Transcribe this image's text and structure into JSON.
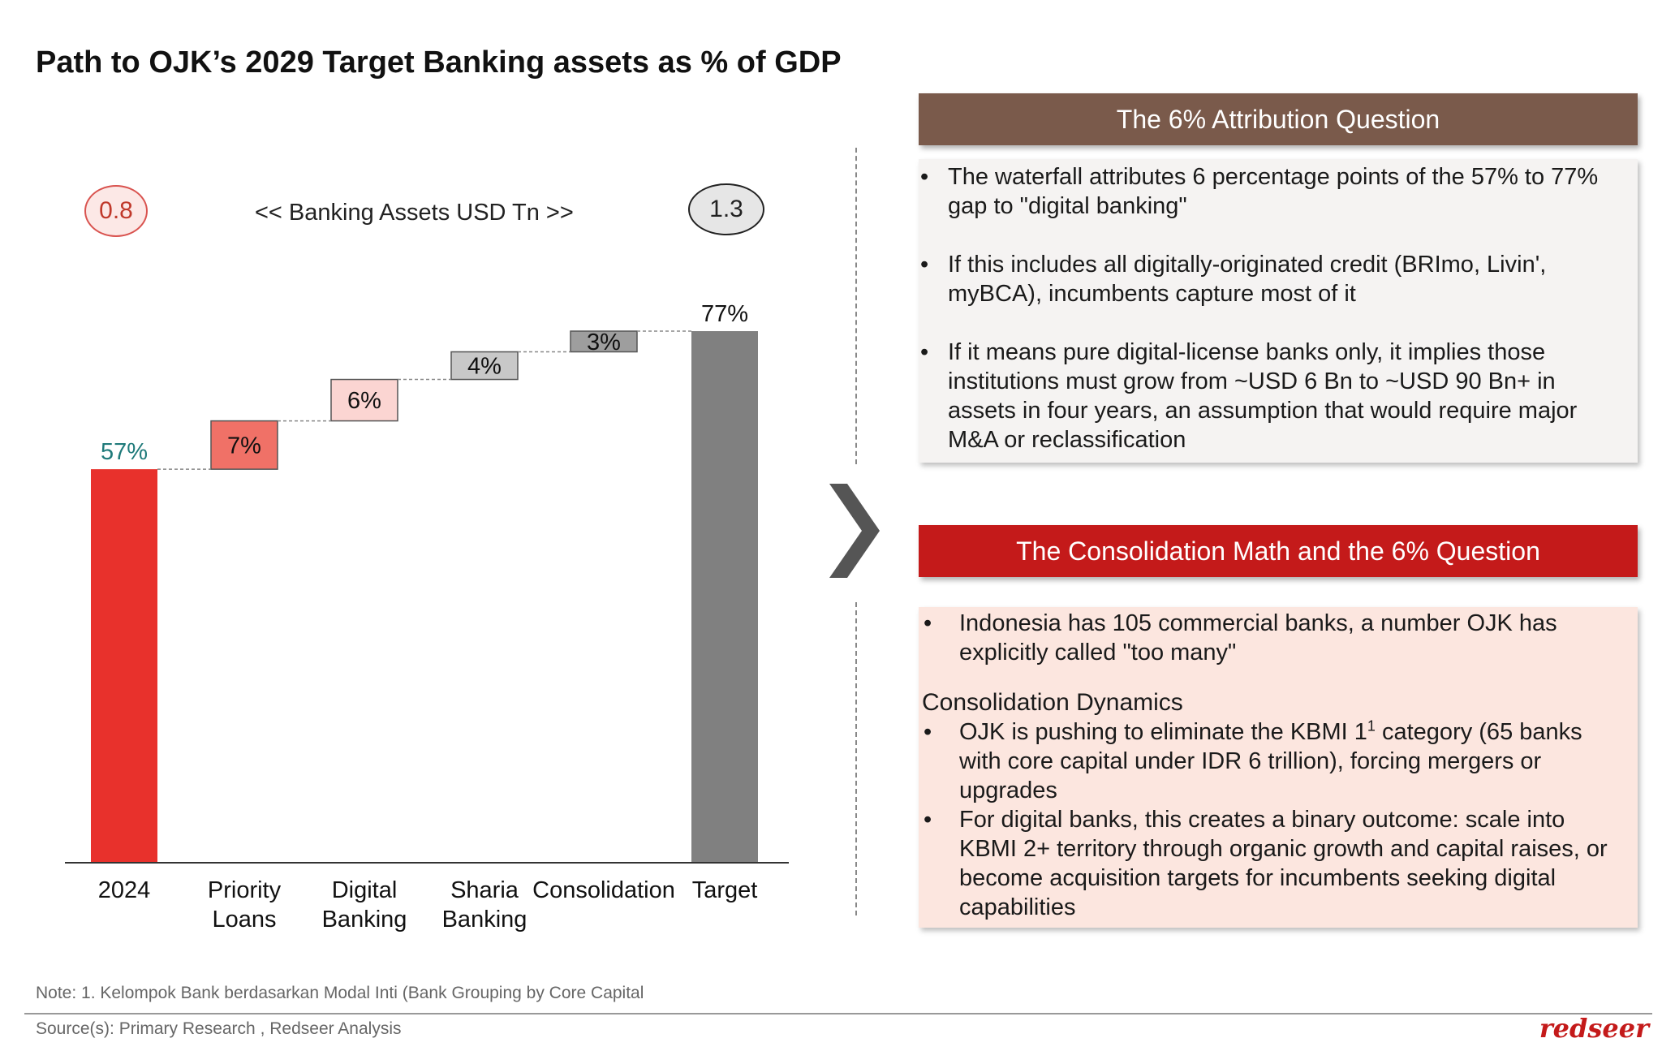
{
  "title": "Path to OJK’s 2029 Target Banking assets as % of GDP",
  "chart_data": {
    "type": "bar",
    "subtype": "waterfall",
    "categories": [
      "2024",
      "Priority\nLoans",
      "Digital\nBanking",
      "Sharia\nBanking",
      "Consolidation",
      "Target"
    ],
    "values": [
      57,
      7,
      6,
      4,
      3,
      77
    ],
    "value_labels": [
      "57%",
      "7%",
      "6%",
      "4%",
      "3%",
      "77%"
    ],
    "bar_roles": [
      "total",
      "increment",
      "increment",
      "increment",
      "increment",
      "total"
    ],
    "start_total": "0.8",
    "end_total": "1.3",
    "units_label": "<< Banking Assets USD Tn >>",
    "ylim": [
      0,
      77
    ],
    "grid": false,
    "colors": {
      "start": "#e8312c",
      "increments": [
        "#f07167",
        "#fbd5d2",
        "#c8c8c8",
        "#9e9e9e"
      ],
      "end": "#808080",
      "start_label": "#1f7a7a"
    }
  },
  "panel1": {
    "header": "The 6% Attribution Question",
    "bullets": [
      "The waterfall attributes 6 percentage points of the 57% to 77% gap to \"digital banking\"",
      "If this includes all digitally-originated credit (BRImo, Livin', myBCA), incumbents capture most of it",
      "If it means pure digital-license banks only, it implies those institutions must grow from ~USD 6 Bn to ~USD 90 Bn+ in assets in four years, an assumption that would require major M&A or reclassification"
    ]
  },
  "panel2": {
    "header": "The Consolidation Math and the 6% Question",
    "intro_bullet": "Indonesia has 105 commercial banks, a number OJK has explicitly called \"too many\"",
    "subheading": "Consolidation Dynamics",
    "bullet_a_pre": "OJK is pushing to eliminate the KBMI 1",
    "bullet_a_sup": "1",
    "bullet_a_post": " category (65 banks with core capital under IDR 6 trillion), forcing mergers or upgrades",
    "bullet_b": "For digital banks, this creates a binary outcome: scale into KBMI 2+ territory through organic growth and capital raises, or become acquisition targets for incumbents seeking digital capabilities"
  },
  "footer": {
    "note": "Note: 1. Kelompok Bank berdasarkan Modal Inti (Bank Grouping by Core Capital",
    "source": "Source(s): Primary Research , Redseer Analysis",
    "logo": "redseer"
  }
}
